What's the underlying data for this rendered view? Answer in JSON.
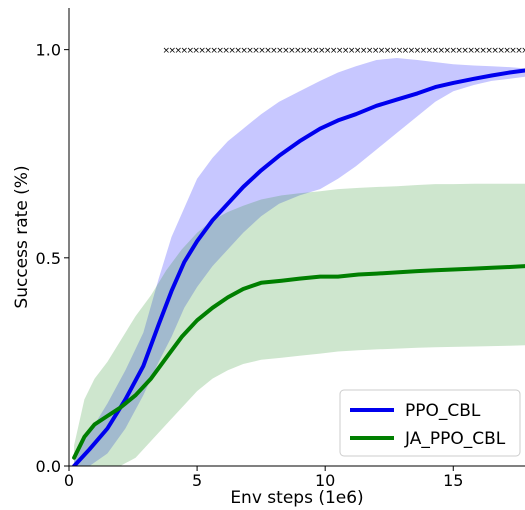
{
  "chart_data": {
    "type": "line",
    "title": "",
    "xlabel": "Env steps (1e6)",
    "ylabel": "Success rate (%)",
    "xlim": [
      0,
      17.8
    ],
    "ylim": [
      0,
      1.1
    ],
    "x_ticks": [
      0,
      5,
      10,
      15
    ],
    "y_ticks": [
      0.0,
      0.5,
      1.0
    ],
    "x_tick_labels": [
      "0",
      "5",
      "10",
      "15"
    ],
    "y_tick_labels": [
      "0.0",
      "0.5",
      "1.0"
    ],
    "grid": false,
    "legend_position": "bottom-right",
    "marker_row": {
      "marker": "x",
      "y": 1.0,
      "x_start": 3.8,
      "x_end": 17.8,
      "color": "#000000"
    },
    "series": [
      {
        "name": "PPO_CBL",
        "color": "#0000ee",
        "band_color": "#0000ff",
        "x": [
          0.2,
          0.8,
          1.5,
          2.2,
          2.9,
          3.5,
          4.0,
          4.5,
          5.0,
          5.6,
          6.2,
          6.8,
          7.5,
          8.2,
          9.0,
          9.8,
          10.5,
          11.2,
          12.0,
          12.8,
          13.6,
          14.3,
          15.0,
          15.8,
          16.5,
          17.2,
          17.8
        ],
        "y": [
          0.0,
          0.04,
          0.09,
          0.16,
          0.24,
          0.34,
          0.42,
          0.49,
          0.54,
          0.59,
          0.63,
          0.67,
          0.71,
          0.745,
          0.78,
          0.81,
          0.83,
          0.845,
          0.865,
          0.88,
          0.895,
          0.91,
          0.92,
          0.93,
          0.938,
          0.945,
          0.95
        ],
        "upper": [
          0.02,
          0.08,
          0.15,
          0.23,
          0.32,
          0.45,
          0.55,
          0.62,
          0.69,
          0.74,
          0.78,
          0.81,
          0.845,
          0.875,
          0.9,
          0.925,
          0.945,
          0.96,
          0.975,
          0.98,
          0.975,
          0.97,
          0.965,
          0.962,
          0.96,
          0.958,
          0.955
        ],
        "lower": [
          0.0,
          0.0,
          0.03,
          0.09,
          0.17,
          0.25,
          0.31,
          0.38,
          0.43,
          0.48,
          0.52,
          0.56,
          0.6,
          0.63,
          0.65,
          0.665,
          0.69,
          0.72,
          0.76,
          0.8,
          0.84,
          0.875,
          0.9,
          0.915,
          0.925,
          0.93,
          0.935
        ]
      },
      {
        "name": "JA_PPO_CBL",
        "color": "#007f00",
        "band_color": "#228b22",
        "x": [
          0.2,
          0.6,
          1.0,
          1.5,
          2.0,
          2.6,
          3.2,
          3.8,
          4.4,
          5.0,
          5.6,
          6.2,
          6.8,
          7.5,
          8.3,
          9.0,
          9.8,
          10.5,
          11.3,
          12.0,
          12.8,
          13.6,
          14.3,
          15.0,
          15.8,
          16.5,
          17.2,
          17.8
        ],
        "y": [
          0.02,
          0.07,
          0.1,
          0.12,
          0.14,
          0.17,
          0.21,
          0.26,
          0.31,
          0.35,
          0.38,
          0.405,
          0.425,
          0.44,
          0.445,
          0.45,
          0.455,
          0.455,
          0.46,
          0.462,
          0.465,
          0.468,
          0.47,
          0.472,
          0.474,
          0.476,
          0.478,
          0.48
        ],
        "upper": [
          0.05,
          0.16,
          0.21,
          0.25,
          0.3,
          0.36,
          0.41,
          0.47,
          0.52,
          0.56,
          0.59,
          0.61,
          0.625,
          0.64,
          0.65,
          0.655,
          0.66,
          0.665,
          0.668,
          0.67,
          0.672,
          0.675,
          0.677,
          0.677,
          0.678,
          0.678,
          0.678,
          0.678
        ],
        "lower": [
          0.0,
          0.0,
          0.0,
          0.0,
          0.0,
          0.02,
          0.06,
          0.1,
          0.14,
          0.18,
          0.21,
          0.23,
          0.245,
          0.255,
          0.26,
          0.265,
          0.27,
          0.275,
          0.278,
          0.28,
          0.282,
          0.284,
          0.285,
          0.286,
          0.287,
          0.288,
          0.289,
          0.29
        ]
      }
    ]
  }
}
